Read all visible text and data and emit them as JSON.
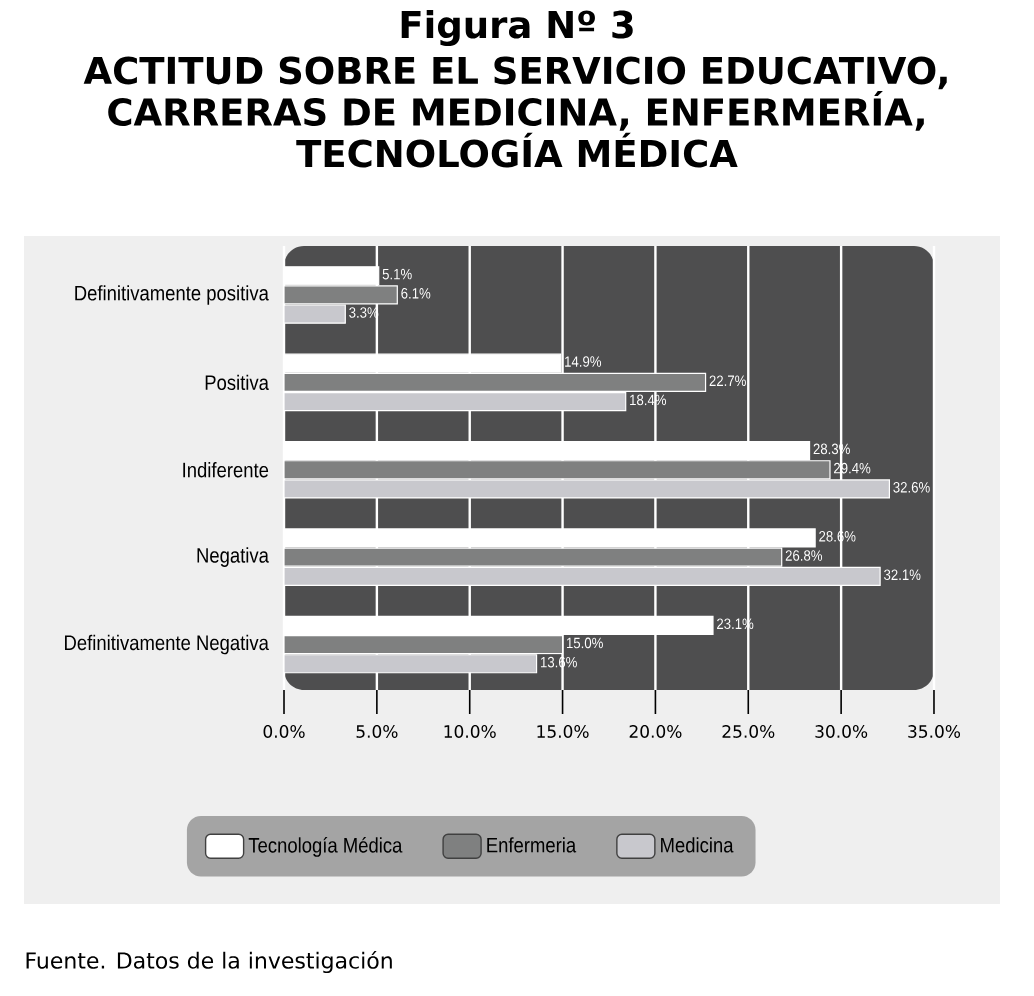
{
  "chart_data": {
    "type": "bar",
    "orientation": "horizontal",
    "title": "Figura Nº 3",
    "subtitle": "ACTITUD SOBRE EL SERVICIO EDUCATIVO, CARRERAS DE MEDICINA, ENFERMERÍA, TECNOLOGÍA MÉDICA",
    "categories": [
      "Definitivamente positiva",
      "Positiva",
      "Indiferente",
      "Negativa",
      "Definitivamente Negativa"
    ],
    "series": [
      {
        "name": "Tecnología Médica",
        "color": "#ffffff",
        "values": [
          5.1,
          14.9,
          28.3,
          28.6,
          23.1
        ],
        "value_labels": [
          "5.1%",
          "14.9%",
          "28.3%",
          "28.6%",
          "23.1%"
        ]
      },
      {
        "name": "Enfermeria",
        "color": "#7f8080",
        "values": [
          6.1,
          22.7,
          29.4,
          26.8,
          15.0
        ],
        "value_labels": [
          "6.1%",
          "22.7%",
          "29.4%",
          "26.8%",
          "15.0%"
        ]
      },
      {
        "name": "Medicina",
        "color": "#c8c8cd",
        "values": [
          3.3,
          18.4,
          32.6,
          32.1,
          13.6
        ],
        "value_labels": [
          "3.3%",
          "18.4%",
          "32.6%",
          "32.1%",
          "13.6%"
        ]
      }
    ],
    "xlim": [
      0,
      35
    ],
    "xticks": [
      {
        "value": 0,
        "label": "0.0%"
      },
      {
        "value": 5,
        "label": "5.0%"
      },
      {
        "value": 10,
        "label": "10.0%"
      },
      {
        "value": 15,
        "label": "15.0%"
      },
      {
        "value": 20,
        "label": "20.0%"
      },
      {
        "value": 25,
        "label": "25.0%"
      },
      {
        "value": 30,
        "label": "30.0%"
      },
      {
        "value": 35,
        "label": "35.0%"
      }
    ],
    "grid": "x",
    "legend": "bottom",
    "annotations": [
      "Fuente. Datos de la investigación"
    ]
  }
}
